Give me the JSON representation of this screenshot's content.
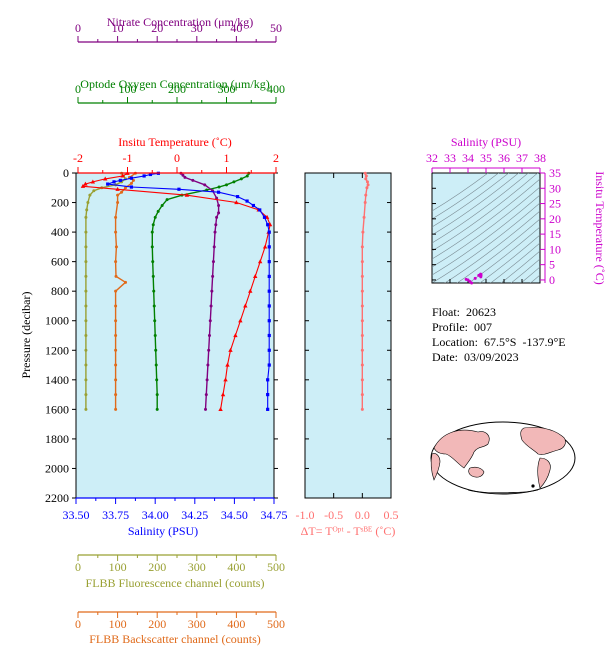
{
  "colors": {
    "plot_bg": "#cdeef7",
    "salinity": "#0000ff",
    "temperature": "#ff0000",
    "oxygen": "#008000",
    "nitrate": "#800080",
    "fluorescence": "#99a033",
    "backscatter": "#e06a1a",
    "delta_t": "#ff7070",
    "ts_accent": "#cc00cc",
    "land": "#f2b8b8"
  },
  "meta": {
    "float": "Float:  20623",
    "profile": "Profile:  007",
    "location": "Location:  67.5°S  -137.9°E",
    "date": "Date:  03/09/2023"
  },
  "chart_data": [
    {
      "type": "line",
      "panel": "main-profile",
      "ylabel": "Pressure (decibar)",
      "ylim": [
        0,
        2200
      ],
      "y_ticks": [
        "0",
        "200",
        "400",
        "600",
        "800",
        "1000",
        "1200",
        "1400",
        "1600",
        "1800",
        "2000",
        "2200"
      ],
      "axes": {
        "salinity": {
          "label": "Salinity (PSU)",
          "range": [
            33.5,
            34.75
          ],
          "ticks": [
            "33.50",
            "33.75",
            "34.00",
            "34.25",
            "34.50",
            "34.75"
          ]
        },
        "temperature": {
          "label": "Insitu Temperature (˚C)",
          "range": [
            -2,
            2
          ],
          "ticks": [
            "-2",
            "-1",
            "0",
            "1",
            "2"
          ]
        },
        "oxygen": {
          "label": "Optode Oxygen Concentration (μm/kg)",
          "range": [
            0,
            400
          ],
          "ticks": [
            "0",
            "100",
            "200",
            "300",
            "400"
          ]
        },
        "nitrate": {
          "label": "Nitrate Concentration (μm/kg)",
          "range": [
            0,
            50
          ],
          "ticks": [
            "0",
            "10",
            "20",
            "30",
            "40",
            "50"
          ]
        },
        "fluorescence": {
          "label": "FLBB Fluorescence channel (counts)",
          "range": [
            0,
            500
          ],
          "ticks": [
            "0",
            "100",
            "200",
            "300",
            "400",
            "500"
          ]
        },
        "backscatter": {
          "label": "FLBB Backscatter channel (counts)",
          "range": [
            0,
            500
          ],
          "ticks": [
            "0",
            "100",
            "200",
            "300",
            "400",
            "500"
          ]
        }
      },
      "series": [
        {
          "key": "salinity",
          "marker": "square",
          "points": [
            [
              34.02,
              2
            ],
            [
              33.97,
              10
            ],
            [
              33.93,
              20
            ],
            [
              33.85,
              35
            ],
            [
              33.78,
              50
            ],
            [
              33.74,
              60
            ],
            [
              33.7,
              75
            ],
            [
              33.85,
              95
            ],
            [
              34.15,
              110
            ],
            [
              34.4,
              130
            ],
            [
              34.52,
              160
            ],
            [
              34.58,
              190
            ],
            [
              34.62,
              220
            ],
            [
              34.66,
              250
            ],
            [
              34.69,
              300
            ],
            [
              34.71,
              350
            ],
            [
              34.72,
              400
            ],
            [
              34.72,
              500
            ],
            [
              34.72,
              600
            ],
            [
              34.72,
              700
            ],
            [
              34.72,
              800
            ],
            [
              34.72,
              900
            ],
            [
              34.72,
              1000
            ],
            [
              34.72,
              1100
            ],
            [
              34.72,
              1200
            ],
            [
              34.72,
              1300
            ],
            [
              34.71,
              1400
            ],
            [
              34.71,
              1500
            ],
            [
              34.71,
              1600
            ]
          ]
        },
        {
          "key": "temperature",
          "marker": "triangle",
          "points": [
            [
              -1.0,
              2
            ],
            [
              -1.1,
              20
            ],
            [
              -1.45,
              40
            ],
            [
              -1.7,
              60
            ],
            [
              -1.85,
              75
            ],
            [
              -1.9,
              90
            ],
            [
              -1.2,
              110
            ],
            [
              0.2,
              150
            ],
            [
              1.2,
              200
            ],
            [
              1.65,
              250
            ],
            [
              1.82,
              300
            ],
            [
              1.88,
              350
            ],
            [
              1.85,
              400
            ],
            [
              1.78,
              500
            ],
            [
              1.68,
              600
            ],
            [
              1.58,
              700
            ],
            [
              1.48,
              800
            ],
            [
              1.38,
              900
            ],
            [
              1.28,
              1000
            ],
            [
              1.18,
              1100
            ],
            [
              1.08,
              1200
            ],
            [
              1.02,
              1300
            ],
            [
              0.98,
              1400
            ],
            [
              0.93,
              1500
            ],
            [
              0.88,
              1600
            ]
          ]
        },
        {
          "key": "oxygen",
          "marker": "circle",
          "points": [
            [
              345,
              2
            ],
            [
              342,
              20
            ],
            [
              330,
              40
            ],
            [
              315,
              60
            ],
            [
              300,
              80
            ],
            [
              285,
              95
            ],
            [
              260,
              115
            ],
            [
              210,
              150
            ],
            [
              180,
              180
            ],
            [
              170,
              220
            ],
            [
              162,
              260
            ],
            [
              156,
              300
            ],
            [
              152,
              350
            ],
            [
              150,
              400
            ],
            [
              150,
              500
            ],
            [
              151,
              600
            ],
            [
              152,
              700
            ],
            [
              153,
              800
            ],
            [
              154,
              900
            ],
            [
              155,
              1000
            ],
            [
              156,
              1100
            ],
            [
              157,
              1200
            ],
            [
              158,
              1300
            ],
            [
              159,
              1400
            ],
            [
              160,
              1500
            ],
            [
              160,
              1600
            ]
          ]
        },
        {
          "key": "nitrate",
          "marker": "circle",
          "points": [
            [
              26,
              2
            ],
            [
              26.5,
              15
            ],
            [
              27,
              30
            ],
            [
              29,
              50
            ],
            [
              32,
              80
            ],
            [
              34,
              120
            ],
            [
              35,
              170
            ],
            [
              35.5,
              220
            ],
            [
              35.5,
              270
            ],
            [
              35,
              300
            ],
            [
              34.8,
              350
            ],
            [
              34.6,
              400
            ],
            [
              34.4,
              500
            ],
            [
              34.2,
              600
            ],
            [
              34,
              700
            ],
            [
              33.8,
              800
            ],
            [
              33.6,
              900
            ],
            [
              33.4,
              1000
            ],
            [
              33.2,
              1100
            ],
            [
              33,
              1200
            ],
            [
              32.8,
              1300
            ],
            [
              32.6,
              1400
            ],
            [
              32.4,
              1500
            ],
            [
              32.2,
              1600
            ]
          ]
        },
        {
          "key": "fluorescence",
          "marker": "circle",
          "points": [
            [
              110,
              2
            ],
            [
              115,
              20
            ],
            [
              120,
              40
            ],
            [
              110,
              60
            ],
            [
              95,
              80
            ],
            [
              60,
              100
            ],
            [
              40,
              120
            ],
            [
              30,
              150
            ],
            [
              25,
              200
            ],
            [
              22,
              250
            ],
            [
              20,
              300
            ],
            [
              20,
              400
            ],
            [
              20,
              500
            ],
            [
              20,
              600
            ],
            [
              20,
              700
            ],
            [
              20,
              800
            ],
            [
              20,
              900
            ],
            [
              20,
              1000
            ],
            [
              20,
              1100
            ],
            [
              20,
              1200
            ],
            [
              20,
              1300
            ],
            [
              20,
              1400
            ],
            [
              20,
              1500
            ],
            [
              20,
              1600
            ]
          ]
        },
        {
          "key": "backscatter",
          "marker": "circle",
          "points": [
            [
              145,
              2
            ],
            [
              130,
              30
            ],
            [
              140,
              50
            ],
            [
              135,
              70
            ],
            [
              120,
              100
            ],
            [
              110,
              130
            ],
            [
              100,
              150
            ],
            [
              100,
              200
            ],
            [
              95,
              300
            ],
            [
              95,
              400
            ],
            [
              97,
              500
            ],
            [
              95,
              600
            ],
            [
              96,
              700
            ],
            [
              120,
              740
            ],
            [
              95,
              800
            ],
            [
              95,
              900
            ],
            [
              95,
              1000
            ],
            [
              95,
              1100
            ],
            [
              95,
              1200
            ],
            [
              95,
              1300
            ],
            [
              95,
              1400
            ],
            [
              95,
              1500
            ],
            [
              95,
              1600
            ]
          ]
        }
      ]
    },
    {
      "type": "line",
      "panel": "delta-t",
      "xlabel": "ΔT= Tᴼᵖᵗ - Tˢᴮᴱ (˚C)",
      "xlim": [
        -1.0,
        0.5
      ],
      "x_ticks": [
        "-1.0",
        "-0.5",
        "0.0",
        "0.5"
      ],
      "ylim": [
        0,
        2200
      ],
      "series": [
        {
          "key": "delta_t",
          "marker": "circle",
          "points": [
            [
              0.05,
              2
            ],
            [
              0.07,
              20
            ],
            [
              0.06,
              40
            ],
            [
              0.09,
              60
            ],
            [
              0.1,
              80
            ],
            [
              0.08,
              100
            ],
            [
              0.06,
              150
            ],
            [
              0.05,
              200
            ],
            [
              0.03,
              300
            ],
            [
              0.01,
              400
            ],
            [
              0.0,
              500
            ],
            [
              0.0,
              600
            ],
            [
              0.0,
              700
            ],
            [
              0.0,
              800
            ],
            [
              0.0,
              900
            ],
            [
              0.0,
              1000
            ],
            [
              0.0,
              1100
            ],
            [
              0.0,
              1200
            ],
            [
              0.0,
              1300
            ],
            [
              0.0,
              1400
            ],
            [
              0.0,
              1500
            ],
            [
              0.0,
              1600
            ]
          ]
        }
      ]
    },
    {
      "type": "scatter",
      "panel": "ts-diagram",
      "xlabel": "Salinity (PSU)",
      "ylabel": "Insitu Temperature (˚C)",
      "xlim": [
        32,
        38
      ],
      "ylim": [
        -1,
        35
      ],
      "x_ticks": [
        "32",
        "33",
        "34",
        "35",
        "36",
        "37",
        "38"
      ],
      "y_ticks": [
        "0",
        "5",
        "10",
        "15",
        "20",
        "25",
        "30",
        "35"
      ],
      "series": [
        {
          "key": "ts",
          "marker": "circle",
          "points": [
            [
              33.9,
              0.2
            ],
            [
              34.0,
              0.0
            ],
            [
              34.1,
              -0.5
            ],
            [
              34.2,
              -1.0
            ],
            [
              34.4,
              0.5
            ],
            [
              34.6,
              1.5
            ],
            [
              34.7,
              1.9
            ],
            [
              34.72,
              1.8
            ],
            [
              34.72,
              1.4
            ],
            [
              34.71,
              1.0
            ]
          ]
        }
      ]
    }
  ]
}
